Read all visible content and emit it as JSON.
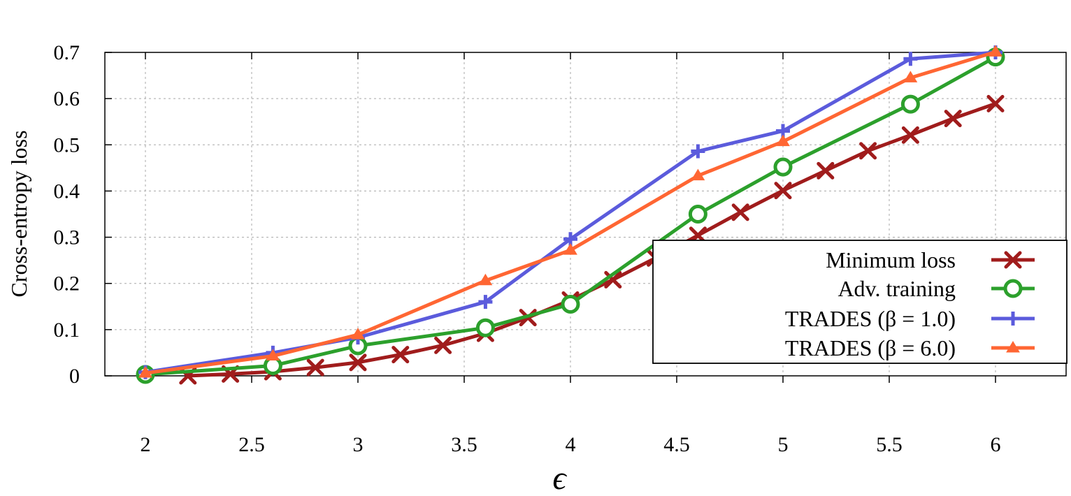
{
  "chart_data": {
    "type": "line",
    "title": "",
    "xlabel": "ϵ",
    "ylabel": "Cross-entropy loss",
    "xlim": [
      2,
      6
    ],
    "ylim": [
      0,
      0.7
    ],
    "xticks": [
      "2",
      "2.5",
      "3",
      "3.5",
      "4",
      "4.5",
      "5",
      "5.5",
      "6"
    ],
    "yticks": [
      "0",
      "0.1",
      "0.2",
      "0.3",
      "0.4",
      "0.5",
      "0.6",
      "0.7"
    ],
    "grid": true,
    "legend_position": "bottom-right",
    "series": [
      {
        "name": "Minimum loss",
        "color": "#a01c1c",
        "marker": "x",
        "x": [
          2.2,
          2.4,
          2.6,
          2.8,
          3.0,
          3.2,
          3.4,
          3.6,
          3.8,
          4.0,
          4.2,
          4.4,
          4.6,
          4.8,
          5.0,
          5.2,
          5.4,
          5.6,
          5.8,
          6.0
        ],
        "y": [
          0.0,
          0.004,
          0.009,
          0.018,
          0.029,
          0.046,
          0.066,
          0.092,
          0.126,
          0.164,
          0.208,
          0.255,
          0.304,
          0.354,
          0.401,
          0.444,
          0.487,
          0.521,
          0.557,
          0.589
        ]
      },
      {
        "name": "Adv. training",
        "color": "#2ca02c",
        "marker": "circle",
        "x": [
          2.0,
          2.6,
          3.0,
          3.6,
          4.0,
          4.6,
          5.0,
          5.6,
          6.0
        ],
        "y": [
          0.003,
          0.022,
          0.065,
          0.104,
          0.155,
          0.35,
          0.452,
          0.588,
          0.69
        ]
      },
      {
        "name": "TRADES (β = 1.0)",
        "color": "#5b5bdc",
        "marker": "plus",
        "x": [
          2.0,
          2.6,
          3.0,
          3.6,
          4.0,
          4.6,
          5.0,
          5.6,
          6.0
        ],
        "y": [
          0.008,
          0.05,
          0.083,
          0.16,
          0.296,
          0.486,
          0.53,
          0.686,
          0.7
        ]
      },
      {
        "name": "TRADES (β = 6.0)",
        "color": "#ff6633",
        "marker": "triangle",
        "x": [
          2.0,
          2.6,
          3.0,
          3.6,
          4.0,
          4.6,
          5.0,
          5.6,
          6.0
        ],
        "y": [
          0.006,
          0.043,
          0.089,
          0.206,
          0.272,
          0.433,
          0.507,
          0.645,
          0.701
        ]
      }
    ]
  }
}
